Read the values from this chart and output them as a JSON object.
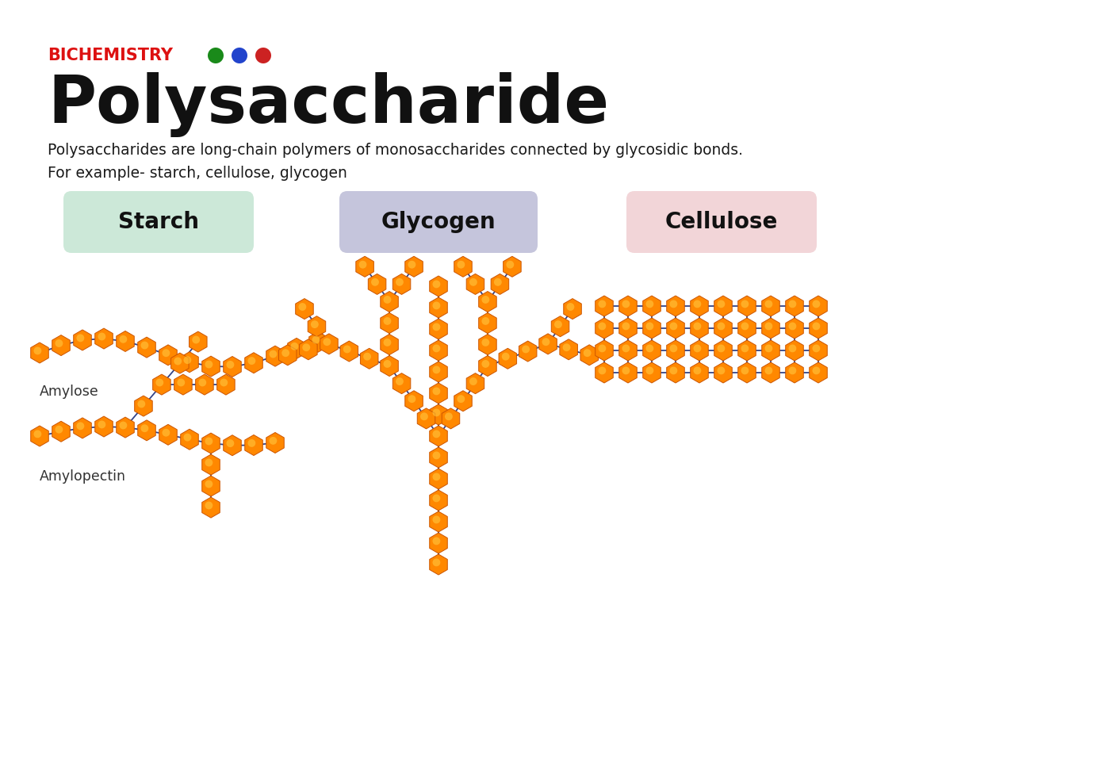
{
  "title": "Polysaccharide",
  "subtitle": "BICHEMISTRY",
  "description_line1": "Polysaccharides are long-chain polymers of monosaccharides connected by glycosidic bonds.",
  "description_line2": "For example- starch, cellulose, glycogen",
  "bg_color": "#ffffff",
  "dot_colors": [
    "#1a8a1a",
    "#2244cc",
    "#cc2222"
  ],
  "title_color": "#111111",
  "subtitle_color": "#dd1111",
  "starch_label": "Starch",
  "starch_bg": "#cce8d8",
  "glycogen_label": "Glycogen",
  "glycogen_bg": "#c5c5dc",
  "cellulose_label": "Cellulose",
  "cellulose_bg": "#f2d5d8",
  "amylose_label": "Amylose",
  "amylopectin_label": "Amylopectin",
  "node_face_color": "#ff8800",
  "node_edge_color": "#cc5500",
  "link_color": "#334488",
  "node_r": 13
}
